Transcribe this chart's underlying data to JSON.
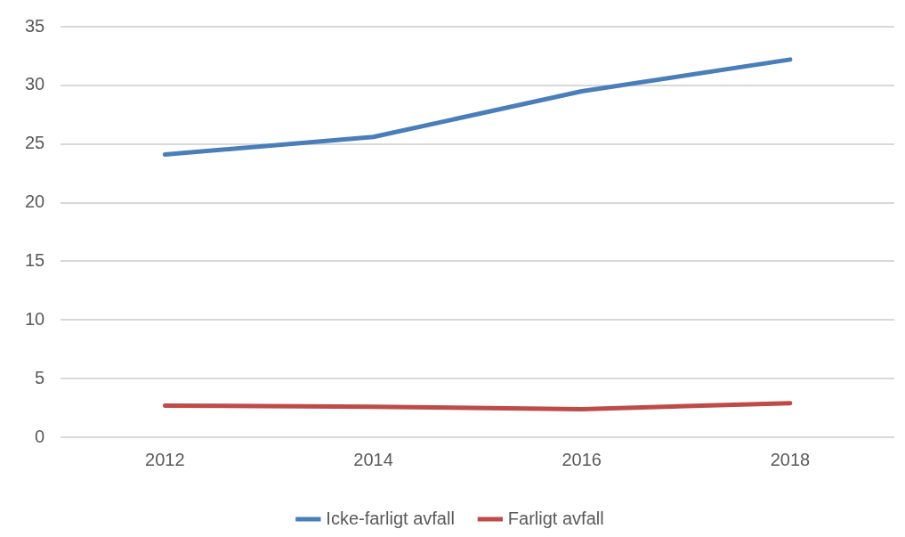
{
  "chart_data": {
    "type": "line",
    "categories": [
      "2012",
      "2014",
      "2016",
      "2018"
    ],
    "series": [
      {
        "name": "Icke-farligt avfall",
        "color": "#4a7ebb",
        "values": [
          24.1,
          25.6,
          29.5,
          32.2
        ]
      },
      {
        "name": "Farligt avfall",
        "color": "#be4b48",
        "values": [
          2.7,
          2.6,
          2.4,
          2.9
        ]
      }
    ],
    "ylim": [
      0,
      35
    ],
    "yticks": [
      0,
      5,
      10,
      15,
      20,
      25,
      30,
      35
    ],
    "grid": "y",
    "legend": "bottom",
    "marker": "none",
    "line_style": "solid"
  }
}
